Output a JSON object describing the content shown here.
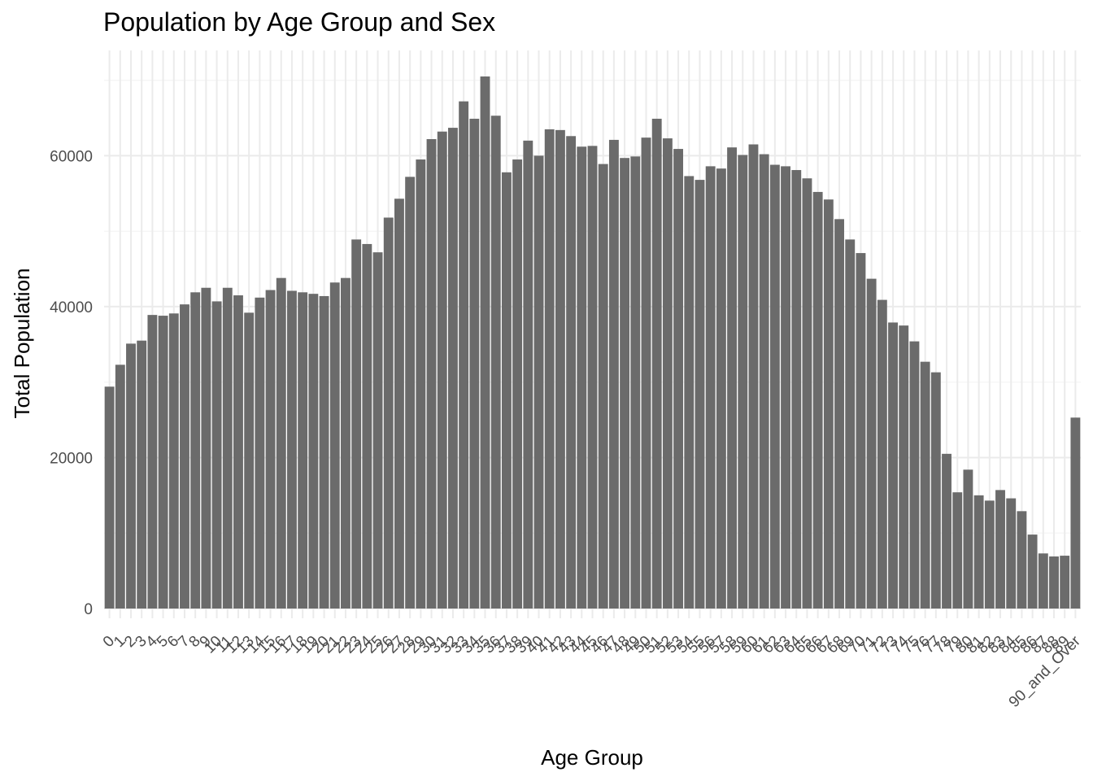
{
  "chart_data": {
    "type": "bar",
    "title": "Population by Age Group and Sex",
    "xlabel": "Age Group",
    "ylabel": "Total Population",
    "ylim": [
      0,
      73000
    ],
    "y_ticks": [
      0,
      20000,
      40000,
      60000
    ],
    "grid": true,
    "legend": "none",
    "bar_color": "#6b6b6b",
    "categories": [
      "0",
      "1",
      "2",
      "3",
      "4",
      "5",
      "6",
      "7",
      "8",
      "9",
      "10",
      "11",
      "12",
      "13",
      "14",
      "15",
      "16",
      "17",
      "18",
      "19",
      "20",
      "21",
      "22",
      "23",
      "24",
      "25",
      "26",
      "27",
      "28",
      "29",
      "30",
      "31",
      "32",
      "33",
      "34",
      "35",
      "36",
      "37",
      "38",
      "39",
      "40",
      "41",
      "42",
      "43",
      "44",
      "45",
      "46",
      "47",
      "48",
      "49",
      "50",
      "51",
      "52",
      "53",
      "54",
      "55",
      "56",
      "57",
      "58",
      "59",
      "60",
      "61",
      "62",
      "63",
      "64",
      "65",
      "66",
      "67",
      "68",
      "69",
      "70",
      "71",
      "72",
      "73",
      "74",
      "75",
      "76",
      "77",
      "78",
      "79",
      "80",
      "81",
      "82",
      "83",
      "84",
      "85",
      "86",
      "87",
      "88",
      "89",
      "90_and_Over"
    ],
    "values": [
      29400,
      32300,
      35100,
      35500,
      38900,
      38800,
      39100,
      40300,
      41900,
      42500,
      40700,
      42500,
      41500,
      39200,
      41200,
      42200,
      43800,
      42100,
      41900,
      41700,
      41400,
      43200,
      43800,
      48900,
      48300,
      47200,
      51800,
      54300,
      57200,
      59500,
      62200,
      63200,
      63700,
      67200,
      64900,
      70500,
      65300,
      57800,
      59500,
      62000,
      60000,
      63500,
      63400,
      62600,
      61200,
      61300,
      58900,
      62100,
      59700,
      59900,
      62400,
      64900,
      62300,
      60900,
      57300,
      56800,
      58600,
      58300,
      61100,
      60100,
      61500,
      60200,
      58800,
      58600,
      58100,
      57000,
      55200,
      54200,
      51600,
      48900,
      47100,
      43700,
      40900,
      37900,
      37500,
      35400,
      32700,
      31300,
      20500,
      15400,
      18400,
      15000,
      14300,
      15700,
      14600,
      12900,
      9800,
      7300,
      6900,
      7000,
      25300
    ]
  }
}
